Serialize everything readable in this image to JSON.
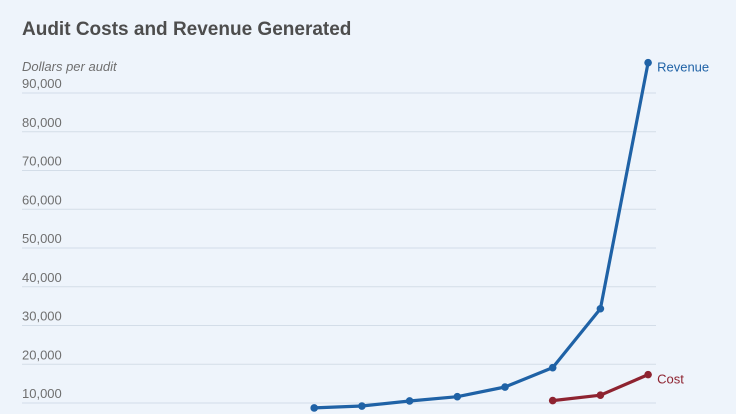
{
  "chart_data": {
    "type": "line",
    "title": "Audit Costs and Revenue Generated",
    "ylabel": "Dollars per audit",
    "xlabel": "",
    "ylim": [
      10000,
      90000
    ],
    "yticks": [
      "10,000",
      "20,000",
      "30,000",
      "40,000",
      "50,000",
      "60,000",
      "70,000",
      "80,000",
      "90,000"
    ],
    "yticks_values": [
      10000,
      20000,
      30000,
      40000,
      50000,
      60000,
      70000,
      80000,
      90000
    ],
    "grid": true,
    "series": [
      {
        "name": "Revenue",
        "color": "#1f62a6",
        "values": [
          null,
          null,
          null,
          null,
          null,
          null,
          6400,
          6900,
          8200,
          9300,
          11800,
          16800,
          32000,
          95500
        ]
      },
      {
        "name": "Cost",
        "color": "#8e2330",
        "values": [
          null,
          null,
          null,
          null,
          null,
          null,
          null,
          null,
          null,
          null,
          null,
          8300,
          9700,
          15000
        ]
      }
    ]
  }
}
